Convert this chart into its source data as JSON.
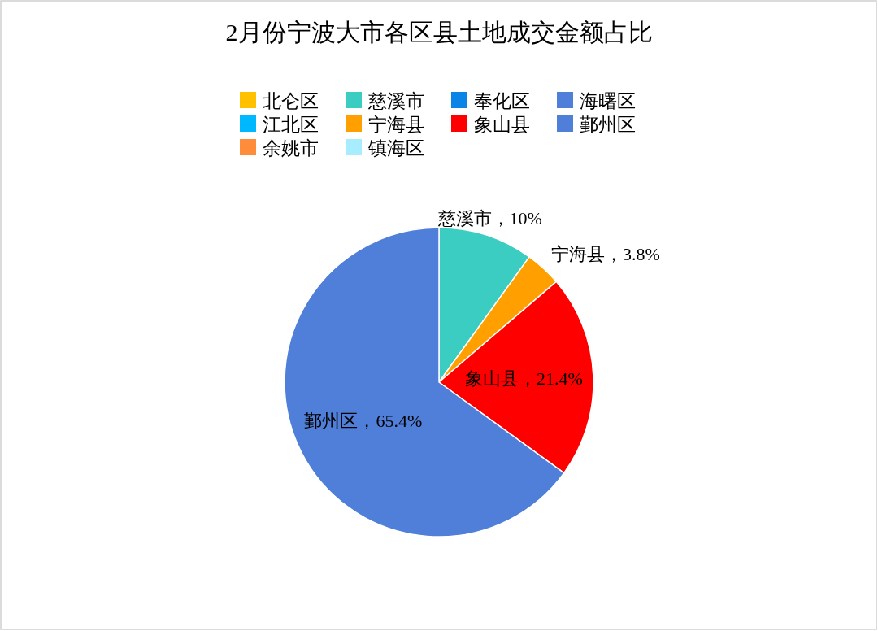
{
  "chart_data": {
    "type": "pie",
    "title": "2月份宁波大市各区县土地成交金额占比",
    "categories": [
      "北仑区",
      "慈溪市",
      "奉化区",
      "海曙区",
      "江北区",
      "宁海县",
      "象山县",
      "鄞州区",
      "余姚市",
      "镇海区"
    ],
    "values": [
      0,
      10,
      0,
      0,
      0,
      3.8,
      21.4,
      65.4,
      0,
      0
    ],
    "colors": [
      "#ffc000",
      "#3ccdc2",
      "#0a84e6",
      "#4f7fd9",
      "#00b8ff",
      "#ffa000",
      "#ff0000",
      "#4f7fd9",
      "#ff8c3a",
      "#a8ecff"
    ],
    "value_labels": [
      null,
      "慈溪市，10%",
      null,
      null,
      null,
      "宁海县，3.8%",
      "象山县，21.4%",
      "鄞州区，65.4%",
      null,
      null
    ],
    "legend": "top"
  }
}
